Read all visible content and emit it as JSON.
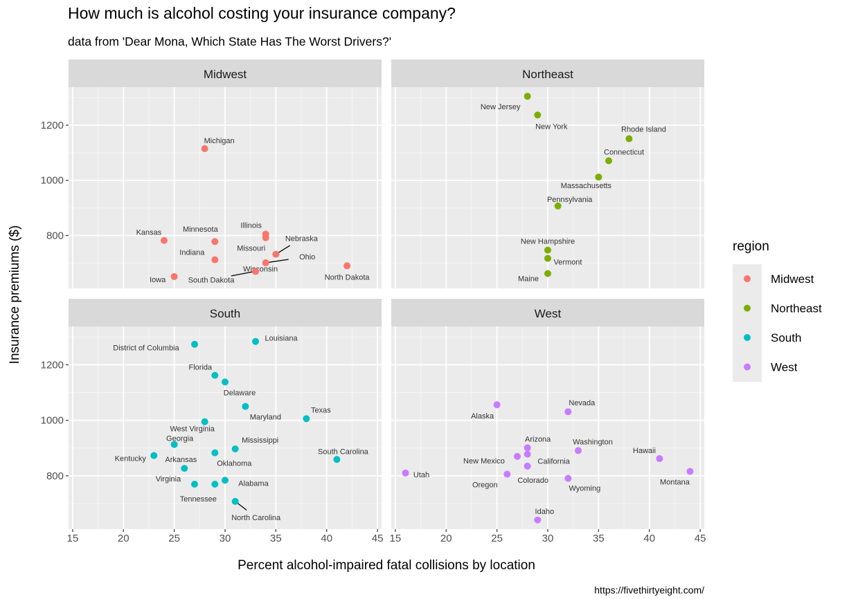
{
  "chart_data": {
    "type": "scatter",
    "title": "How much is alcohol costing your insurance company?",
    "subtitle": "data from 'Dear Mona, Which State Has The Worst Drivers?'",
    "xlabel": "Percent alcohol-impaired fatal collisions by location",
    "ylabel": "Insurance premiums ($)",
    "caption": "https://fivethirtyeight.com/",
    "xlim": [
      14.6,
      45.4
    ],
    "ylim": [
      608,
      1338
    ],
    "x_ticks": [
      15,
      20,
      25,
      30,
      35,
      40,
      45
    ],
    "y_ticks": [
      800,
      1000,
      1200
    ],
    "grid": true,
    "legend": {
      "title": "region",
      "placement": "right",
      "entries": [
        "Midwest",
        "Northeast",
        "South",
        "West"
      ]
    },
    "colors": {
      "Midwest": "#F8766D",
      "Northeast": "#7CAE00",
      "South": "#00BFC4",
      "West": "#C77CFF"
    },
    "facets": [
      {
        "region": "Midwest",
        "points": [
          {
            "state": "Michigan",
            "x": 28,
            "y": 1115
          },
          {
            "state": "Kansas",
            "x": 24,
            "y": 782
          },
          {
            "state": "Minnesota",
            "x": 29,
            "y": 778
          },
          {
            "state": "Indiana",
            "x": 29,
            "y": 712
          },
          {
            "state": "Iowa",
            "x": 25,
            "y": 651
          },
          {
            "state": "Illinois",
            "x": 34,
            "y": 805
          },
          {
            "state": "Missouri",
            "x": 34,
            "y": 792
          },
          {
            "state": "Nebraska",
            "x": 35,
            "y": 732
          },
          {
            "state": "Ohio",
            "x": 34,
            "y": 701
          },
          {
            "state": "Wisconsin",
            "x": 33,
            "y": 670
          },
          {
            "state": "South Dakota",
            "x": 33,
            "y": 670
          },
          {
            "state": "North Dakota",
            "x": 42,
            "y": 690
          }
        ]
      },
      {
        "region": "Northeast",
        "points": [
          {
            "state": "New Jersey",
            "x": 28,
            "y": 1305
          },
          {
            "state": "New York",
            "x": 29,
            "y": 1237
          },
          {
            "state": "Rhode Island",
            "x": 38,
            "y": 1151
          },
          {
            "state": "Connecticut",
            "x": 36,
            "y": 1071
          },
          {
            "state": "Massachusetts",
            "x": 35,
            "y": 1012
          },
          {
            "state": "Pennsylvania",
            "x": 31,
            "y": 907
          },
          {
            "state": "New Hampshire",
            "x": 30,
            "y": 747
          },
          {
            "state": "Vermont",
            "x": 30,
            "y": 717
          },
          {
            "state": "Maine",
            "x": 30,
            "y": 662
          }
        ]
      },
      {
        "region": "South",
        "points": [
          {
            "state": "District of Columbia",
            "x": 27,
            "y": 1274
          },
          {
            "state": "Louisiana",
            "x": 33,
            "y": 1284
          },
          {
            "state": "Florida",
            "x": 29,
            "y": 1162
          },
          {
            "state": "Delaware",
            "x": 30,
            "y": 1138
          },
          {
            "state": "Maryland",
            "x": 32,
            "y": 1050
          },
          {
            "state": "Texas",
            "x": 38,
            "y": 1006
          },
          {
            "state": "West Virginia",
            "x": 28,
            "y": 995
          },
          {
            "state": "Georgia",
            "x": 25,
            "y": 913
          },
          {
            "state": "Mississippi",
            "x": 31,
            "y": 897
          },
          {
            "state": "Oklahoma",
            "x": 29,
            "y": 883
          },
          {
            "state": "Kentucky",
            "x": 23,
            "y": 873
          },
          {
            "state": "South Carolina",
            "x": 41,
            "y": 859
          },
          {
            "state": "Arkansas",
            "x": 26,
            "y": 827
          },
          {
            "state": "Alabama",
            "x": 30,
            "y": 784
          },
          {
            "state": "Virginia",
            "x": 27,
            "y": 770
          },
          {
            "state": "Tennessee",
            "x": 29,
            "y": 770
          },
          {
            "state": "North Carolina",
            "x": 31,
            "y": 708
          }
        ]
      },
      {
        "region": "West",
        "points": [
          {
            "state": "Alaska",
            "x": 25,
            "y": 1056
          },
          {
            "state": "Nevada",
            "x": 32,
            "y": 1031
          },
          {
            "state": "Arizona",
            "x": 28,
            "y": 901
          },
          {
            "state": "California",
            "x": 28,
            "y": 878
          },
          {
            "state": "Washington",
            "x": 33,
            "y": 891
          },
          {
            "state": "New Mexico",
            "x": 27,
            "y": 870
          },
          {
            "state": "Hawaii",
            "x": 41,
            "y": 862
          },
          {
            "state": "Colorado",
            "x": 28,
            "y": 835
          },
          {
            "state": "Oregon",
            "x": 26,
            "y": 806
          },
          {
            "state": "Utah",
            "x": 16,
            "y": 810
          },
          {
            "state": "Montana",
            "x": 44,
            "y": 816
          },
          {
            "state": "Wyoming",
            "x": 32,
            "y": 791
          },
          {
            "state": "Idaho",
            "x": 29,
            "y": 641
          }
        ]
      }
    ]
  }
}
